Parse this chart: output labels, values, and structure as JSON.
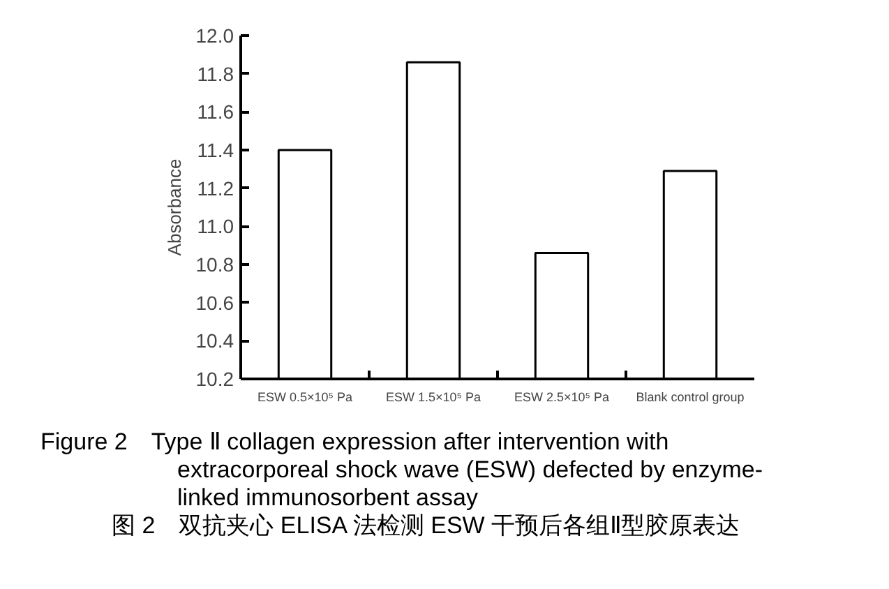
{
  "chart_data": {
    "type": "bar",
    "categories": [
      "ESW 0.5×10⁵ Pa",
      "ESW 1.5×10⁵ Pa",
      "ESW 2.5×10⁵ Pa",
      "Blank control group"
    ],
    "values": [
      11.4,
      11.86,
      10.86,
      11.29
    ],
    "color": "#ffffff",
    "ylabel": "Absorbance",
    "ylim": [
      10.2,
      12.0
    ],
    "yticks": [
      10.2,
      10.4,
      10.6,
      10.8,
      {
        "value": 11.0,
        "label": "11.0"
      },
      11.2,
      11.4,
      11.6,
      11.8,
      {
        "value": 12.0,
        "label": "12.0"
      }
    ],
    "annotations": [
      "Figure 2 Type Ⅱ collagen expression after intervention with extracorporeal shock wave (ESW) defected by enzyme-linked immunosorbent assay",
      "图 2 双抗夹心 ELISA 法检测 ESW 干预后各组Ⅱ型胶原表达"
    ]
  }
}
